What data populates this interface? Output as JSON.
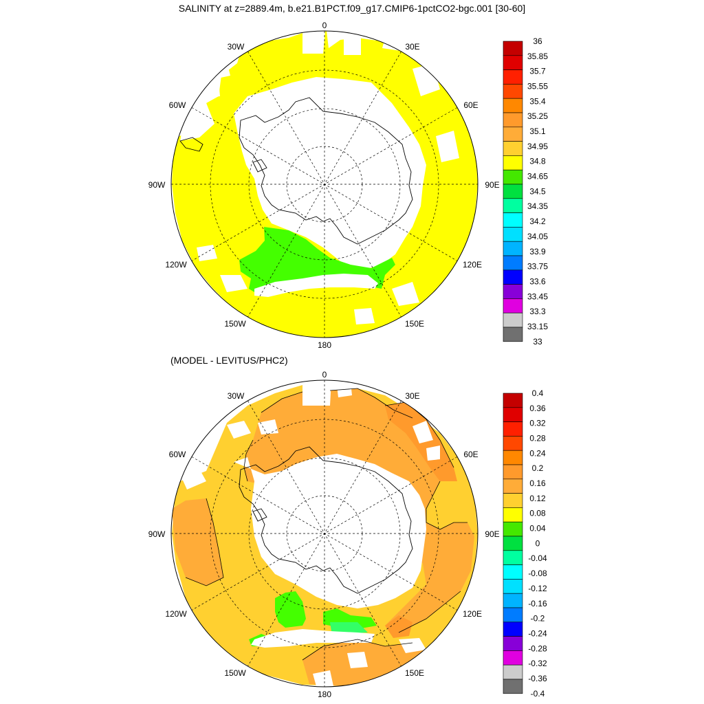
{
  "title": "SALINITY at z=2889.4m, b.e21.B1PCT.f09_g17.CMIP6-1pctCO2-bgc.001 [30-60]",
  "diff_title": "(MODEL - LEVITUS/PHC2)",
  "longitude_labels": [
    "0",
    "30E",
    "60E",
    "90E",
    "120E",
    "150E",
    "180",
    "150W",
    "120W",
    "90W",
    "60W",
    "30W"
  ],
  "colorbar_top": {
    "labels": [
      "36",
      "35.85",
      "35.7",
      "35.55",
      "35.4",
      "35.25",
      "35.1",
      "34.95",
      "34.8",
      "34.65",
      "34.5",
      "34.35",
      "34.2",
      "34.05",
      "33.9",
      "33.75",
      "33.6",
      "33.45",
      "33.3",
      "33.15",
      "33"
    ],
    "colors": [
      "#c40000",
      "#e00000",
      "#ff2000",
      "#ff4800",
      "#ff8800",
      "#ff9a2c",
      "#ffac38",
      "#ffd030",
      "#ffff00",
      "#44e800",
      "#00e040",
      "#00ffa0",
      "#00ffff",
      "#00e0ff",
      "#00b4ff",
      "#007cff",
      "#0000ff",
      "#8800d8",
      "#e000e0",
      "#cccccc",
      "#707070"
    ]
  },
  "colorbar_bottom": {
    "labels": [
      "0.4",
      "0.36",
      "0.32",
      "0.28",
      "0.24",
      "0.2",
      "0.16",
      "0.12",
      "0.08",
      "0.04",
      "0",
      "-0.04",
      "-0.08",
      "-0.12",
      "-0.16",
      "-0.2",
      "-0.24",
      "-0.28",
      "-0.32",
      "-0.36",
      "-0.4"
    ],
    "colors": [
      "#c40000",
      "#e00000",
      "#ff2000",
      "#ff4800",
      "#ff8800",
      "#ff9a2c",
      "#ffac38",
      "#ffd030",
      "#ffff00",
      "#44e800",
      "#00e040",
      "#00ffa0",
      "#00ffff",
      "#00e0ff",
      "#00b4ff",
      "#007cff",
      "#0000ff",
      "#8800d8",
      "#e000e0",
      "#cccccc",
      "#707070"
    ]
  },
  "fill_colors": {
    "yellow": "#ffff00",
    "green": "#44ff00",
    "light_green": "#44e800",
    "bright_green": "#33ff66",
    "orange": "#ffac38",
    "light_orange": "#ffc030",
    "gold": "#ffd030",
    "dark_orange": "#ff9a2c"
  }
}
